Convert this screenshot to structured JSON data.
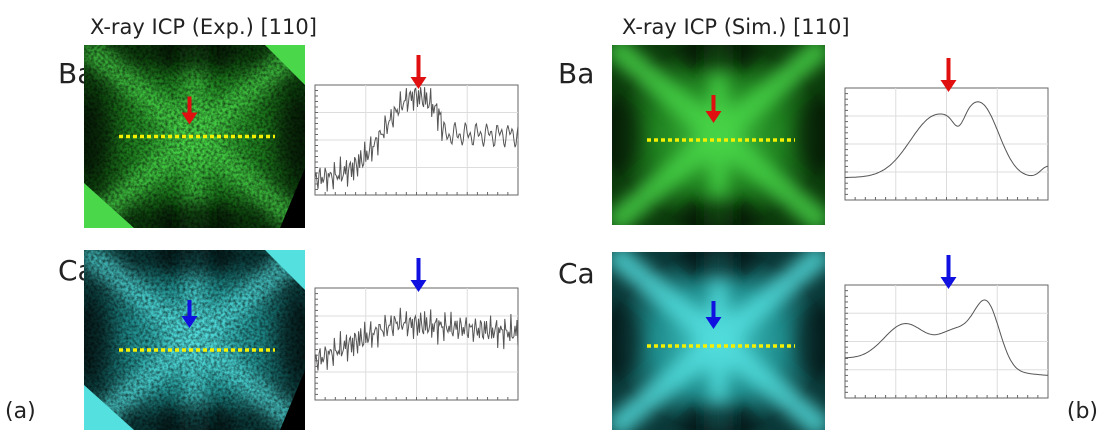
{
  "panels": [
    {
      "title": "X-ray ICP (Exp.) [110]",
      "rows": [
        {
          "element": "Ba"
        },
        {
          "element": "Ca"
        }
      ],
      "label": "(a)"
    },
    {
      "title": "X-ray ICP (Sim.) [110]",
      "rows": [
        {
          "element": "Ba"
        },
        {
          "element": "Ca"
        }
      ],
      "label": "(b)"
    }
  ]
}
